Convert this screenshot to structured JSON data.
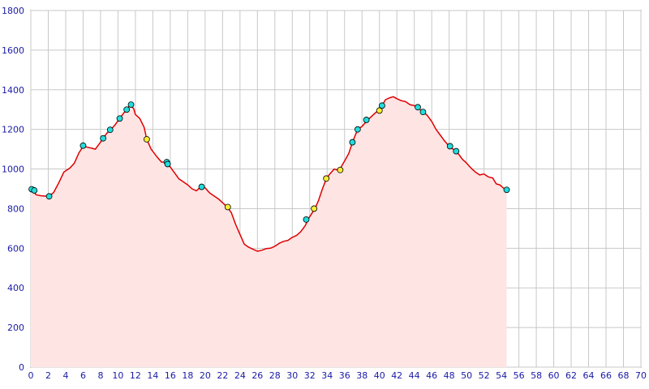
{
  "chart_data": {
    "type": "area",
    "title": "",
    "xlabel": "",
    "ylabel": "",
    "xlim": [
      0,
      70
    ],
    "ylim": [
      0,
      1800
    ],
    "xticks": [
      0,
      2,
      4,
      6,
      8,
      10,
      12,
      14,
      16,
      18,
      20,
      22,
      24,
      26,
      28,
      30,
      32,
      34,
      36,
      38,
      40,
      42,
      44,
      46,
      48,
      50,
      52,
      54,
      56,
      58,
      60,
      62,
      64,
      66,
      68,
      70
    ],
    "yticks": [
      0,
      200,
      400,
      600,
      800,
      1000,
      1200,
      1400,
      1600,
      1800
    ],
    "grid": true,
    "colors": {
      "line": "#dd0000",
      "fill": "#ffe4e4",
      "marker_cyan": "#22dddd",
      "marker_yellow": "#ffee33",
      "tick_text": "#1a1aa6"
    },
    "series": [
      {
        "values": [
          [
            0,
            900
          ],
          [
            0.3,
            890
          ],
          [
            0.6,
            870
          ],
          [
            1.2,
            865
          ],
          [
            2,
            862
          ],
          [
            2.6,
            880
          ],
          [
            3.2,
            930
          ],
          [
            3.8,
            985
          ],
          [
            4.5,
            1005
          ],
          [
            5,
            1030
          ],
          [
            5.5,
            1080
          ],
          [
            6,
            1115
          ],
          [
            6.5,
            1110
          ],
          [
            7,
            1105
          ],
          [
            7.4,
            1100
          ],
          [
            7.9,
            1130
          ],
          [
            8.3,
            1155
          ],
          [
            8.7,
            1180
          ],
          [
            9.2,
            1200
          ],
          [
            9.7,
            1225
          ],
          [
            10.2,
            1255
          ],
          [
            10.7,
            1285
          ],
          [
            11,
            1300
          ],
          [
            11.4,
            1325
          ],
          [
            11.8,
            1305
          ],
          [
            12,
            1275
          ],
          [
            12.5,
            1255
          ],
          [
            13,
            1210
          ],
          [
            13.3,
            1150
          ],
          [
            13.8,
            1100
          ],
          [
            14.5,
            1060
          ],
          [
            15,
            1035
          ],
          [
            15.6,
            1035
          ],
          [
            16,
            1010
          ],
          [
            16.5,
            980
          ],
          [
            17,
            950
          ],
          [
            17.5,
            935
          ],
          [
            18,
            920
          ],
          [
            18.5,
            900
          ],
          [
            19,
            890
          ],
          [
            19.5,
            910
          ],
          [
            20,
            905
          ],
          [
            20.5,
            880
          ],
          [
            21,
            865
          ],
          [
            21.5,
            850
          ],
          [
            22,
            830
          ],
          [
            22.5,
            810
          ],
          [
            23,
            780
          ],
          [
            23.5,
            720
          ],
          [
            24,
            670
          ],
          [
            24.5,
            620
          ],
          [
            25,
            605
          ],
          [
            25.5,
            595
          ],
          [
            26,
            585
          ],
          [
            26.5,
            590
          ],
          [
            27,
            598
          ],
          [
            27.5,
            600
          ],
          [
            28,
            610
          ],
          [
            28.5,
            625
          ],
          [
            29,
            635
          ],
          [
            29.5,
            640
          ],
          [
            30,
            655
          ],
          [
            30.5,
            665
          ],
          [
            31,
            685
          ],
          [
            31.5,
            715
          ],
          [
            31.8,
            745
          ],
          [
            32.3,
            780
          ],
          [
            32.6,
            800
          ],
          [
            33,
            840
          ],
          [
            33.5,
            905
          ],
          [
            33.9,
            950
          ],
          [
            34.3,
            975
          ],
          [
            34.8,
            1000
          ],
          [
            35.2,
            995
          ],
          [
            35.6,
            1010
          ],
          [
            36,
            1040
          ],
          [
            36.5,
            1080
          ],
          [
            36.9,
            1135
          ],
          [
            37.5,
            1200
          ],
          [
            38,
            1215
          ],
          [
            38.6,
            1245
          ],
          [
            39.2,
            1270
          ],
          [
            39.7,
            1290
          ],
          [
            40,
            1300
          ],
          [
            40.3,
            1320
          ],
          [
            40.7,
            1350
          ],
          [
            41.2,
            1360
          ],
          [
            41.6,
            1365
          ],
          [
            42,
            1355
          ],
          [
            42.5,
            1345
          ],
          [
            43,
            1340
          ],
          [
            43.5,
            1325
          ],
          [
            44,
            1320
          ],
          [
            44.4,
            1310
          ],
          [
            45,
            1290
          ],
          [
            45.5,
            1270
          ],
          [
            46,
            1240
          ],
          [
            46.5,
            1200
          ],
          [
            47,
            1170
          ],
          [
            47.5,
            1140
          ],
          [
            48,
            1115
          ],
          [
            48.6,
            1095
          ],
          [
            49,
            1080
          ],
          [
            49.5,
            1050
          ],
          [
            50,
            1030
          ],
          [
            50.5,
            1005
          ],
          [
            51,
            985
          ],
          [
            51.5,
            970
          ],
          [
            52,
            975
          ],
          [
            52.5,
            960
          ],
          [
            53,
            955
          ],
          [
            53.4,
            925
          ],
          [
            53.8,
            920
          ],
          [
            54.2,
            905
          ],
          [
            54.5,
            895
          ]
        ]
      }
    ],
    "markers": [
      {
        "x": 0.1,
        "y": 898,
        "color": "cyan"
      },
      {
        "x": 0.4,
        "y": 892,
        "color": "cyan"
      },
      {
        "x": 2.1,
        "y": 862,
        "color": "cyan"
      },
      {
        "x": 6,
        "y": 1118,
        "color": "cyan"
      },
      {
        "x": 8.3,
        "y": 1155,
        "color": "cyan"
      },
      {
        "x": 9.1,
        "y": 1198,
        "color": "cyan"
      },
      {
        "x": 10.2,
        "y": 1255,
        "color": "cyan"
      },
      {
        "x": 11,
        "y": 1300,
        "color": "cyan"
      },
      {
        "x": 11.5,
        "y": 1325,
        "color": "cyan"
      },
      {
        "x": 13.3,
        "y": 1150,
        "color": "yellow"
      },
      {
        "x": 15.6,
        "y": 1035,
        "color": "cyan"
      },
      {
        "x": 15.7,
        "y": 1025,
        "color": "cyan"
      },
      {
        "x": 19.6,
        "y": 910,
        "color": "cyan"
      },
      {
        "x": 22.6,
        "y": 808,
        "color": "yellow"
      },
      {
        "x": 31.6,
        "y": 745,
        "color": "cyan"
      },
      {
        "x": 32.5,
        "y": 800,
        "color": "yellow"
      },
      {
        "x": 33.9,
        "y": 952,
        "color": "yellow"
      },
      {
        "x": 35.5,
        "y": 995,
        "color": "yellow"
      },
      {
        "x": 36.9,
        "y": 1135,
        "color": "cyan"
      },
      {
        "x": 37.5,
        "y": 1200,
        "color": "cyan"
      },
      {
        "x": 38.5,
        "y": 1248,
        "color": "cyan"
      },
      {
        "x": 40,
        "y": 1295,
        "color": "yellow"
      },
      {
        "x": 40.3,
        "y": 1320,
        "color": "cyan"
      },
      {
        "x": 44.4,
        "y": 1312,
        "color": "cyan"
      },
      {
        "x": 45,
        "y": 1288,
        "color": "cyan"
      },
      {
        "x": 48.1,
        "y": 1115,
        "color": "cyan"
      },
      {
        "x": 48.8,
        "y": 1090,
        "color": "cyan"
      },
      {
        "x": 54.6,
        "y": 895,
        "color": "cyan"
      }
    ]
  }
}
